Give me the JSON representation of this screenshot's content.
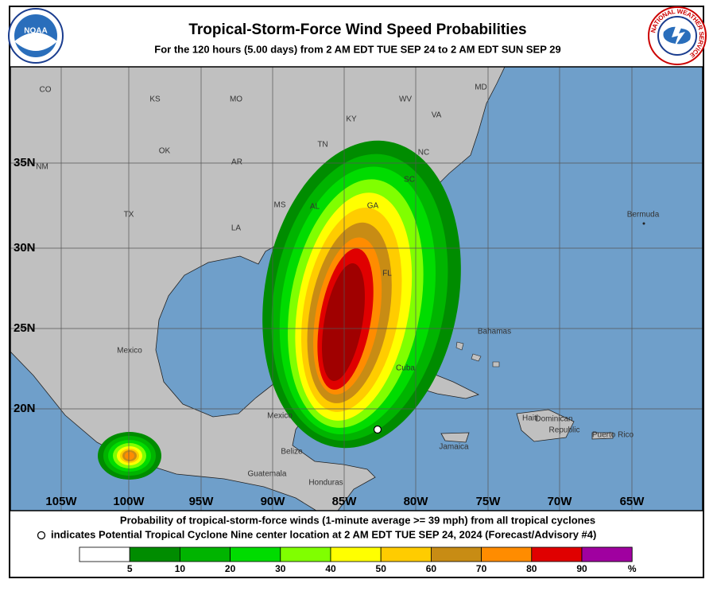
{
  "header": {
    "title": "Tropical-Storm-Force Wind Speed Probabilities",
    "subtitle": "For the 120 hours (5.00 days) from 2 AM EDT TUE SEP 24 to 2 AM EDT SUN SEP 29",
    "left_logo": "NOAA",
    "right_logo": "NATIONAL WEATHER SERVICE"
  },
  "map": {
    "lon_labels": [
      "105W",
      "100W",
      "95W",
      "90W",
      "85W",
      "80W",
      "75W",
      "70W",
      "65W"
    ],
    "lat_labels": [
      "35N",
      "30N",
      "25N",
      "20N"
    ],
    "places": [
      "CO",
      "KS",
      "MO",
      "KY",
      "WV",
      "VA",
      "MD",
      "TN",
      "NC",
      "OK",
      "AR",
      "NM",
      "SC",
      "TX",
      "MS",
      "AL",
      "GA",
      "LA",
      "FL",
      "Bermuda",
      "Mexico",
      "Bahamas",
      "Cuba",
      "Mexico",
      "Haiti",
      "Dominican",
      "Republic",
      "Jamaica",
      "Puerto Rico",
      "Belize",
      "Guatemala",
      "Honduras"
    ]
  },
  "footer": {
    "line1": "Probability of tropical-storm-force winds (1-minute average >= 39 mph) from all tropical cyclones",
    "line2": "indicates Potential Tropical Cyclone Nine center location at 2 AM EDT TUE SEP 24, 2024 (Forecast/Advisory #4)"
  },
  "legend": {
    "colors": [
      "#ffffff",
      "#008c00",
      "#00b400",
      "#00dc00",
      "#80ff00",
      "#ffff00",
      "#ffcc00",
      "#c88c14",
      "#ff8c00",
      "#e00000",
      "#a00000",
      "#a000a0"
    ],
    "labels": [
      "5",
      "10",
      "20",
      "30",
      "40",
      "50",
      "60",
      "70",
      "80",
      "90",
      "%"
    ]
  }
}
